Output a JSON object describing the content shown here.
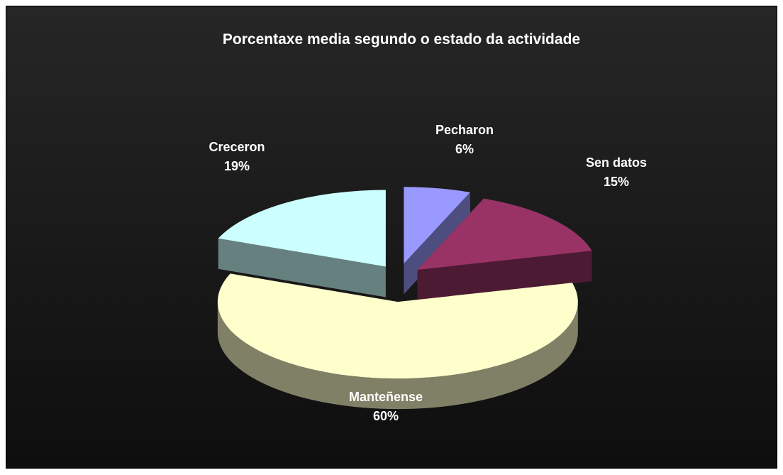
{
  "chart_data": {
    "type": "pie",
    "title": "Porcentaxe media segundo o estado da actividade",
    "three_d": true,
    "exploded": true,
    "slices": [
      {
        "label": "Pecharon",
        "value": 6,
        "value_label": "6%",
        "color": "#9999ff",
        "side_color": "#4d4d80"
      },
      {
        "label": "Sen datos",
        "value": 15,
        "value_label": "15%",
        "color": "#993366",
        "side_color": "#4d1a33"
      },
      {
        "label": "Manteñense",
        "value": 60,
        "value_label": "60%",
        "color": "#ffffcc",
        "side_color": "#808066"
      },
      {
        "label": "Creceron",
        "value": 19,
        "value_label": "19%",
        "color": "#ccffff",
        "side_color": "#668080"
      }
    ]
  }
}
